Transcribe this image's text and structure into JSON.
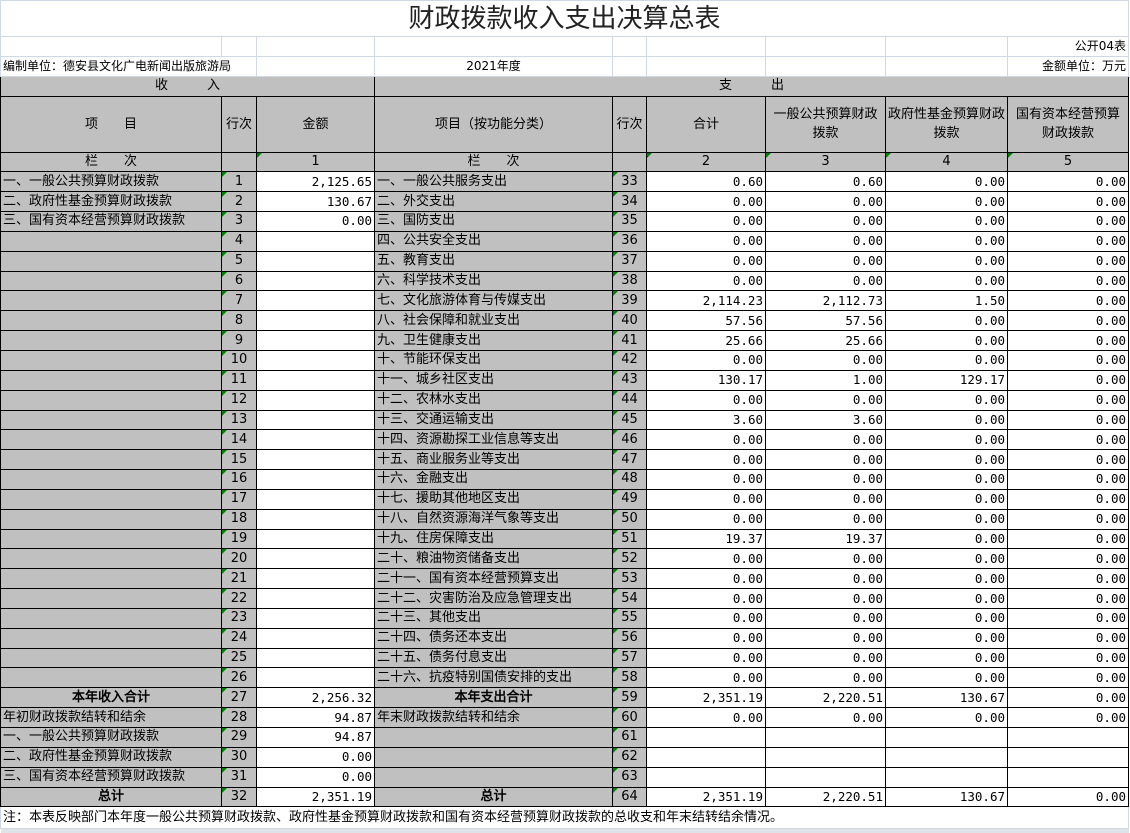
{
  "title": "财政拨款收入支出决算总表",
  "form_code": "公开04表",
  "unit_label": "编制单位：德安县文化广电新闻出版旅游局",
  "year": "2021年度",
  "currency_unit": "金额单位：万元",
  "income_header": "收　　　入",
  "expense_header": "支　　　出",
  "columns": {
    "income_item": "项　　目",
    "line_no": "行次",
    "amount": "金额",
    "expense_item": "项目（按功能分类）",
    "total": "合计",
    "general": "一般公共预算财政拨款",
    "gov_fund": "政府性基金预算财政拨款",
    "state_capital": "国有资本经营预算财政拨款"
  },
  "column_index": {
    "label": "栏　　次",
    "amount": "1",
    "total": "2",
    "general": "3",
    "gov_fund": "4",
    "state_capital": "5"
  },
  "rows": [
    {
      "in_label": "一、一般公共预算财政拨款",
      "in_line": "1",
      "in_amount": "2,125.65",
      "ex_label": "一、一般公共服务支出",
      "ex_line": "33",
      "ex_values": [
        "0.60",
        "0.60",
        "0.00",
        "0.00"
      ]
    },
    {
      "in_label": "二、政府性基金预算财政拨款",
      "in_line": "2",
      "in_amount": "130.67",
      "ex_label": "二、外交支出",
      "ex_line": "34",
      "ex_values": [
        "0.00",
        "0.00",
        "0.00",
        "0.00"
      ]
    },
    {
      "in_label": "三、国有资本经营预算财政拨款",
      "in_line": "3",
      "in_amount": "0.00",
      "ex_label": "三、国防支出",
      "ex_line": "35",
      "ex_values": [
        "0.00",
        "0.00",
        "0.00",
        "0.00"
      ]
    },
    {
      "in_label": "",
      "in_line": "4",
      "in_amount": "",
      "ex_label": "四、公共安全支出",
      "ex_line": "36",
      "ex_values": [
        "0.00",
        "0.00",
        "0.00",
        "0.00"
      ]
    },
    {
      "in_label": "",
      "in_line": "5",
      "in_amount": "",
      "ex_label": "五、教育支出",
      "ex_line": "37",
      "ex_values": [
        "0.00",
        "0.00",
        "0.00",
        "0.00"
      ]
    },
    {
      "in_label": "",
      "in_line": "6",
      "in_amount": "",
      "ex_label": "六、科学技术支出",
      "ex_line": "38",
      "ex_values": [
        "0.00",
        "0.00",
        "0.00",
        "0.00"
      ]
    },
    {
      "in_label": "",
      "in_line": "7",
      "in_amount": "",
      "ex_label": "七、文化旅游体育与传媒支出",
      "ex_line": "39",
      "ex_values": [
        "2,114.23",
        "2,112.73",
        "1.50",
        "0.00"
      ]
    },
    {
      "in_label": "",
      "in_line": "8",
      "in_amount": "",
      "ex_label": "八、社会保障和就业支出",
      "ex_line": "40",
      "ex_values": [
        "57.56",
        "57.56",
        "0.00",
        "0.00"
      ]
    },
    {
      "in_label": "",
      "in_line": "9",
      "in_amount": "",
      "ex_label": "九、卫生健康支出",
      "ex_line": "41",
      "ex_values": [
        "25.66",
        "25.66",
        "0.00",
        "0.00"
      ]
    },
    {
      "in_label": "",
      "in_line": "10",
      "in_amount": "",
      "ex_label": "十、节能环保支出",
      "ex_line": "42",
      "ex_values": [
        "0.00",
        "0.00",
        "0.00",
        "0.00"
      ]
    },
    {
      "in_label": "",
      "in_line": "11",
      "in_amount": "",
      "ex_label": "十一、城乡社区支出",
      "ex_line": "43",
      "ex_values": [
        "130.17",
        "1.00",
        "129.17",
        "0.00"
      ]
    },
    {
      "in_label": "",
      "in_line": "12",
      "in_amount": "",
      "ex_label": "十二、农林水支出",
      "ex_line": "44",
      "ex_values": [
        "0.00",
        "0.00",
        "0.00",
        "0.00"
      ]
    },
    {
      "in_label": "",
      "in_line": "13",
      "in_amount": "",
      "ex_label": "十三、交通运输支出",
      "ex_line": "45",
      "ex_values": [
        "3.60",
        "3.60",
        "0.00",
        "0.00"
      ]
    },
    {
      "in_label": "",
      "in_line": "14",
      "in_amount": "",
      "ex_label": "十四、资源勘探工业信息等支出",
      "ex_line": "46",
      "ex_values": [
        "0.00",
        "0.00",
        "0.00",
        "0.00"
      ]
    },
    {
      "in_label": "",
      "in_line": "15",
      "in_amount": "",
      "ex_label": "十五、商业服务业等支出",
      "ex_line": "47",
      "ex_values": [
        "0.00",
        "0.00",
        "0.00",
        "0.00"
      ]
    },
    {
      "in_label": "",
      "in_line": "16",
      "in_amount": "",
      "ex_label": "十六、金融支出",
      "ex_line": "48",
      "ex_values": [
        "0.00",
        "0.00",
        "0.00",
        "0.00"
      ]
    },
    {
      "in_label": "",
      "in_line": "17",
      "in_amount": "",
      "ex_label": "十七、援助其他地区支出",
      "ex_line": "49",
      "ex_values": [
        "0.00",
        "0.00",
        "0.00",
        "0.00"
      ]
    },
    {
      "in_label": "",
      "in_line": "18",
      "in_amount": "",
      "ex_label": "十八、自然资源海洋气象等支出",
      "ex_line": "50",
      "ex_values": [
        "0.00",
        "0.00",
        "0.00",
        "0.00"
      ]
    },
    {
      "in_label": "",
      "in_line": "19",
      "in_amount": "",
      "ex_label": "十九、住房保障支出",
      "ex_line": "51",
      "ex_values": [
        "19.37",
        "19.37",
        "0.00",
        "0.00"
      ]
    },
    {
      "in_label": "",
      "in_line": "20",
      "in_amount": "",
      "ex_label": "二十、粮油物资储备支出",
      "ex_line": "52",
      "ex_values": [
        "0.00",
        "0.00",
        "0.00",
        "0.00"
      ]
    },
    {
      "in_label": "",
      "in_line": "21",
      "in_amount": "",
      "ex_label": "二十一、国有资本经营预算支出",
      "ex_line": "53",
      "ex_values": [
        "0.00",
        "0.00",
        "0.00",
        "0.00"
      ]
    },
    {
      "in_label": "",
      "in_line": "22",
      "in_amount": "",
      "ex_label": "二十二、灾害防治及应急管理支出",
      "ex_line": "54",
      "ex_values": [
        "0.00",
        "0.00",
        "0.00",
        "0.00"
      ]
    },
    {
      "in_label": "",
      "in_line": "23",
      "in_amount": "",
      "ex_label": "二十三、其他支出",
      "ex_line": "55",
      "ex_values": [
        "0.00",
        "0.00",
        "0.00",
        "0.00"
      ]
    },
    {
      "in_label": "",
      "in_line": "24",
      "in_amount": "",
      "ex_label": "二十四、债务还本支出",
      "ex_line": "56",
      "ex_values": [
        "0.00",
        "0.00",
        "0.00",
        "0.00"
      ]
    },
    {
      "in_label": "",
      "in_line": "25",
      "in_amount": "",
      "ex_label": "二十五、债务付息支出",
      "ex_line": "57",
      "ex_values": [
        "0.00",
        "0.00",
        "0.00",
        "0.00"
      ]
    },
    {
      "in_label": "",
      "in_line": "26",
      "in_amount": "",
      "ex_label": "二十六、抗疫特别国债安排的支出",
      "ex_line": "58",
      "ex_values": [
        "0.00",
        "0.00",
        "0.00",
        "0.00"
      ]
    },
    {
      "in_label": "本年收入合计",
      "in_line": "27",
      "in_amount": "2,256.32",
      "ex_label": "本年支出合计",
      "ex_line": "59",
      "ex_values": [
        "2,351.19",
        "2,220.51",
        "130.67",
        "0.00"
      ],
      "bold": true
    },
    {
      "in_label": "年初财政拨款结转和结余",
      "in_line": "28",
      "in_amount": "94.87",
      "ex_label": "年末财政拨款结转和结余",
      "ex_line": "60",
      "ex_values": [
        "0.00",
        "0.00",
        "0.00",
        "0.00"
      ]
    },
    {
      "in_label": "一、一般公共预算财政拨款",
      "in_line": "29",
      "in_amount": "94.87",
      "ex_label": "",
      "ex_line": "61",
      "ex_values": [
        "",
        "",
        "",
        ""
      ]
    },
    {
      "in_label": "二、政府性基金预算财政拨款",
      "in_line": "30",
      "in_amount": "0.00",
      "ex_label": "",
      "ex_line": "62",
      "ex_values": [
        "",
        "",
        "",
        ""
      ]
    },
    {
      "in_label": "三、国有资本经营预算财政拨款",
      "in_line": "31",
      "in_amount": "0.00",
      "ex_label": "",
      "ex_line": "63",
      "ex_values": [
        "",
        "",
        "",
        ""
      ]
    },
    {
      "in_label": "总计",
      "in_line": "32",
      "in_amount": "2,351.19",
      "ex_label": "总计",
      "ex_line": "64",
      "ex_values": [
        "2,351.19",
        "2,220.51",
        "130.67",
        "0.00"
      ],
      "bold": true
    }
  ],
  "note": "注：本表反映部门本年度一般公共预算财政拨款、政府性基金预算财政拨款和国有资本经营预算财政拨款的总收支和年末结转结余情况。"
}
